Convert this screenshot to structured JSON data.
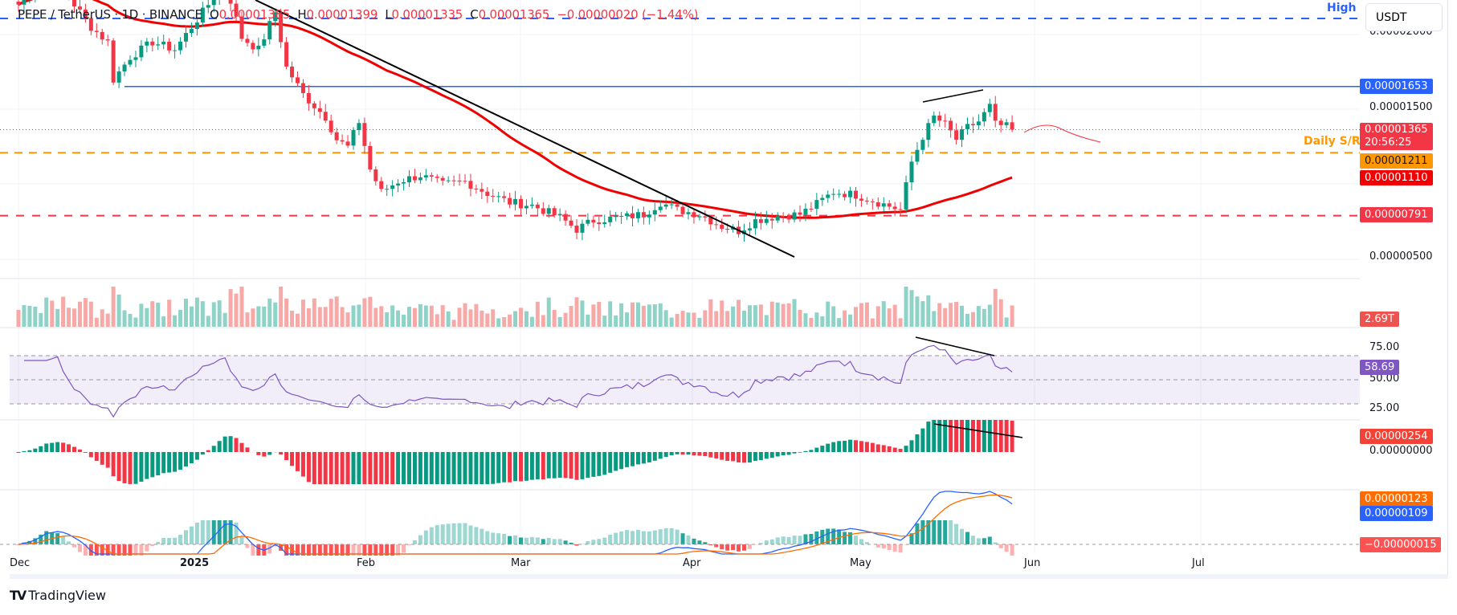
{
  "legend": {
    "symbol": "PEPE / TetherUS · 1D · BINANCE",
    "o_label": "O",
    "o": "0.00001385",
    "h_label": "H",
    "h": "0.00001399",
    "l_label": "L",
    "l": "0.00001335",
    "c_label": "C",
    "c": "0.00001365",
    "change": "−0.00000020 (−1.44%)"
  },
  "currency_button": "USDT",
  "annotations": {
    "high": "High",
    "daily_sr": "Daily S/R"
  },
  "price_axis": {
    "ticks": [
      "0.00002000",
      "0.00001500",
      "0.00000500"
    ],
    "tags": {
      "resistance": "0.00001653",
      "last": "0.00001365",
      "countdown": "20:56:25",
      "daily_sr": "0.00001211",
      "sma": "0.00001110",
      "support": "0.00000791"
    }
  },
  "volume": {
    "tag": "2.69T"
  },
  "rsi": {
    "ticks": [
      "75.00",
      "25.00"
    ],
    "tag": "58.69",
    "hidden_tick": "50.00"
  },
  "macd_hist": {
    "tag": "0.00000254",
    "zero": "0.00000000"
  },
  "macd": {
    "signal": "0.00000123",
    "macd": "0.00000109",
    "hist": "−0.00000015"
  },
  "time_axis": [
    "Dec",
    "2025",
    "Feb",
    "Mar",
    "Apr",
    "May",
    "Jun",
    "Jul"
  ],
  "footer": {
    "brand": "TradingView",
    "logo": "TV"
  },
  "colors": {
    "up": "#089981",
    "down": "#f23645",
    "sma": "#f00000",
    "resistance": "#2962ff",
    "sr": "#ff9800",
    "rsi": "#7e57c2"
  },
  "chart_data": {
    "type": "candlestick",
    "unit": "1e-8 USDT",
    "start": "Dec 1",
    "levels": {
      "high": 2240,
      "resistance": 1653,
      "daily_sr": 1211,
      "support": 791,
      "last": 1365
    },
    "keypoints": [
      [
        0,
        2200
      ],
      [
        5,
        2380
      ],
      [
        9,
        2250
      ],
      [
        13,
        2050
      ],
      [
        16,
        1950
      ],
      [
        17,
        1700
      ],
      [
        20,
        1850
      ],
      [
        24,
        1950
      ],
      [
        28,
        1900
      ],
      [
        33,
        2150
      ],
      [
        37,
        2350
      ],
      [
        40,
        1980
      ],
      [
        43,
        1900
      ],
      [
        46,
        2150
      ],
      [
        48,
        1780
      ],
      [
        51,
        1600
      ],
      [
        55,
        1450
      ],
      [
        57,
        1300
      ],
      [
        59,
        1250
      ],
      [
        61,
        1420
      ],
      [
        63,
        1100
      ],
      [
        65,
        950
      ],
      [
        68,
        1020
      ],
      [
        72,
        1060
      ],
      [
        76,
        1000
      ],
      [
        80,
        1020
      ],
      [
        84,
        940
      ],
      [
        88,
        880
      ],
      [
        92,
        860
      ],
      [
        97,
        780
      ],
      [
        100,
        700
      ],
      [
        103,
        760
      ],
      [
        108,
        780
      ],
      [
        112,
        800
      ],
      [
        115,
        880
      ],
      [
        118,
        830
      ],
      [
        122,
        800
      ],
      [
        126,
        720
      ],
      [
        129,
        690
      ],
      [
        132,
        760
      ],
      [
        136,
        790
      ],
      [
        140,
        800
      ],
      [
        143,
        870
      ],
      [
        146,
        950
      ],
      [
        150,
        930
      ],
      [
        154,
        880
      ],
      [
        158,
        830
      ],
      [
        160,
        1150
      ],
      [
        162,
        1320
      ],
      [
        164,
        1450
      ],
      [
        166,
        1400
      ],
      [
        168,
        1300
      ],
      [
        170,
        1380
      ],
      [
        172,
        1420
      ],
      [
        174,
        1520
      ],
      [
        175,
        1400
      ],
      [
        177,
        1385
      ],
      [
        178,
        1365
      ]
    ]
  }
}
